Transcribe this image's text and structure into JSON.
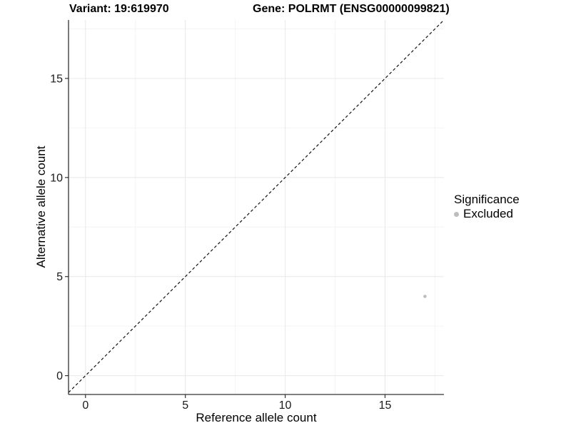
{
  "chart_data": {
    "type": "scatter",
    "titles": {
      "left": "Variant: 19:619970",
      "right": "Gene: POLRMT (ENSG00000099821)"
    },
    "xlabel": "Reference allele count",
    "ylabel": "Alternative allele count",
    "xlim": [
      -0.85,
      17.95
    ],
    "ylim": [
      -0.95,
      17.95
    ],
    "xticks": [
      0,
      5,
      10,
      15
    ],
    "yticks": [
      0,
      5,
      10,
      15
    ],
    "xticks_minor": [
      2.5,
      7.5,
      12.5,
      17.5
    ],
    "yticks_minor": [
      2.5,
      7.5,
      12.5,
      17.5
    ],
    "grid": "major and minor gridlines on white background",
    "legend": {
      "title": "Significance",
      "position": "right",
      "items": [
        {
          "label": "Excluded",
          "color": "#bdbdbd",
          "marker": "circle-icon"
        }
      ]
    },
    "series": [
      {
        "name": "Excluded",
        "color": "#bdbdbd",
        "points": [
          {
            "x": 17,
            "y": 4
          }
        ]
      }
    ],
    "identity_line": {
      "slope": 1,
      "intercept": 0,
      "style": "dashed",
      "color": "#111111",
      "note": "y = x diagonal reference line spanning the panel"
    }
  },
  "colors": {
    "background": "#ffffff",
    "axis_line": "#333333",
    "grid_major": "#e8e8e8",
    "grid_minor": "#f4f4f4",
    "tick_label": "#1a1a1a",
    "point": "#bdbdbd"
  }
}
